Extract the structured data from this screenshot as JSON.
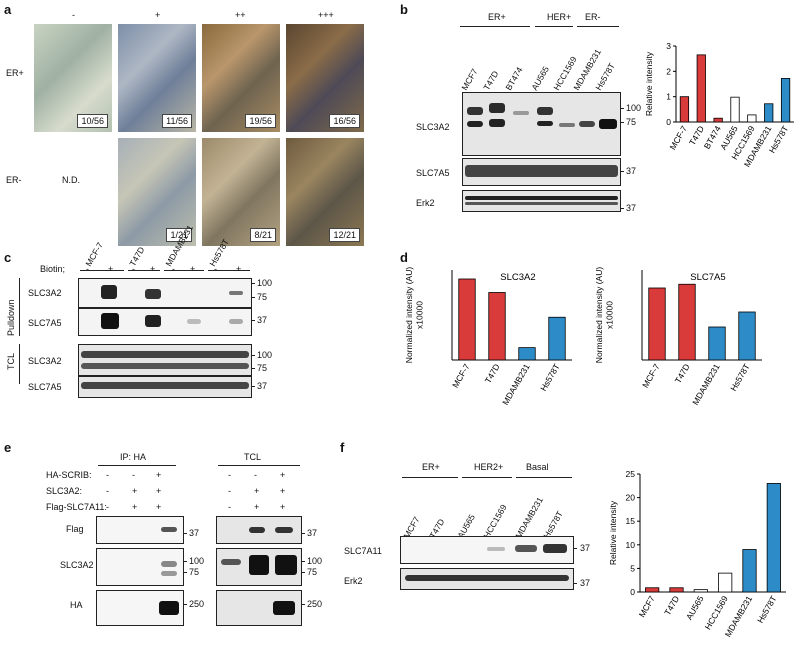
{
  "panels": {
    "a": "a",
    "b": "b",
    "c": "c",
    "d": "d",
    "e": "e",
    "f": "f"
  },
  "a": {
    "columns": [
      "-",
      "+",
      "++",
      "+++"
    ],
    "rows": [
      "ER+",
      "ER-"
    ],
    "nd": "N.D.",
    "er_pos_counts": [
      "10/56",
      "11/56",
      "19/56",
      "16/56"
    ],
    "er_neg_counts": [
      "1/21",
      "8/21",
      "12/21"
    ]
  },
  "b": {
    "groups": [
      "ER+",
      "HER+",
      "ER-"
    ],
    "lanes": [
      "MCF7",
      "T47D",
      "BT474",
      "AU565",
      "HCC1569",
      "MDAMB231",
      "Hs578T"
    ],
    "blots": [
      "SLC3A2",
      "SLC7A5",
      "Erk2"
    ],
    "markers": {
      "m100": "100",
      "m75": "75",
      "m37a": "37",
      "m37b": "37"
    }
  },
  "c": {
    "lanes": [
      "MCF-7",
      "T47D",
      "MDAMB231",
      "Hs578T"
    ],
    "biotin_label": "Biotin;",
    "biotin": [
      "-",
      "+",
      "-",
      "+",
      "-",
      "+",
      "-",
      "+"
    ],
    "sections": [
      "Pulldown",
      "TCL"
    ],
    "blots": [
      "SLC3A2",
      "SLC7A5",
      "SLC3A2",
      "SLC7A5"
    ],
    "markers": {
      "m100a": "100",
      "m75a": "75",
      "m37a": "37",
      "m100b": "100",
      "m75b": "75",
      "m37b": "37"
    }
  },
  "e": {
    "ip_label": "IP: HA",
    "tcl_label": "TCL",
    "rows": [
      "HA-SCRIB:",
      "SLC3A2:",
      "Flag-SLC7A11:"
    ],
    "signs": [
      [
        "-",
        "-",
        "+"
      ],
      [
        "-",
        "+",
        "+"
      ],
      [
        "-",
        "+",
        "+"
      ]
    ],
    "blots": [
      "Flag",
      "SLC3A2",
      "HA"
    ],
    "markers": {
      "m37": "37",
      "m100": "100",
      "m75": "75",
      "m250": "250"
    }
  },
  "f": {
    "groups": [
      "ER+",
      "HER2+",
      "Basal"
    ],
    "lanes": [
      "MCF7",
      "T47D",
      "AU565",
      "HCC1569",
      "MDAMB231",
      "Hs578T"
    ],
    "blots": [
      "SLC7A11",
      "Erk2"
    ],
    "markers": {
      "m37a": "37",
      "m37b": "37"
    }
  },
  "colors": {
    "red": "#d93a3a",
    "blue": "#2d8cc7",
    "white": "#ffffff"
  },
  "chart_data": [
    {
      "id": "b_chart",
      "type": "bar",
      "categories": [
        "MCF-7",
        "T47D",
        "BT474",
        "AU565",
        "HCC1569",
        "MDAMB231",
        "Hs578T"
      ],
      "values": [
        1.0,
        2.65,
        0.15,
        0.98,
        0.28,
        0.72,
        1.72
      ],
      "bar_colors": [
        "red",
        "red",
        "red",
        "white",
        "white",
        "blue",
        "blue"
      ],
      "ylabel": "Relative intensity",
      "ylim": [
        0,
        3
      ],
      "yticks": [
        "0",
        "1",
        "2",
        "3"
      ]
    },
    {
      "id": "d_chart1",
      "type": "bar",
      "categories": [
        "MCF-7",
        "T47D",
        "MDAMB231",
        "Hs578T"
      ],
      "values": [
        3.6,
        3.0,
        0.55,
        1.9
      ],
      "bar_colors": [
        "red",
        "red",
        "blue",
        "blue"
      ],
      "title": "SLC3A2",
      "ylabel": "Normalized intensity (AU)",
      "ylabel2": "x10000",
      "ylim": [
        0,
        4
      ]
    },
    {
      "id": "d_chart2",
      "type": "bar",
      "categories": [
        "MCF-7",
        "T47D",
        "MDAMB231",
        "Hs578T"
      ],
      "values": [
        4.8,
        5.05,
        2.2,
        3.2
      ],
      "bar_colors": [
        "red",
        "red",
        "blue",
        "blue"
      ],
      "title": "SLC7A5",
      "ylabel": "Normalized intensity (AU)",
      "ylabel2": "x10000",
      "ylim": [
        0,
        6
      ]
    },
    {
      "id": "f_chart",
      "type": "bar",
      "categories": [
        "MCF7",
        "T47D",
        "AU565",
        "HCC1569",
        "MDAMB231",
        "Hs578T"
      ],
      "values": [
        0.9,
        0.9,
        0.5,
        4.0,
        9.0,
        23.0
      ],
      "bar_colors": [
        "red",
        "red",
        "white",
        "white",
        "blue",
        "blue"
      ],
      "ylabel": "Relative intensity",
      "ylim": [
        0,
        25
      ],
      "yticks": [
        "0",
        "5",
        "10",
        "15",
        "20",
        "25"
      ]
    }
  ]
}
